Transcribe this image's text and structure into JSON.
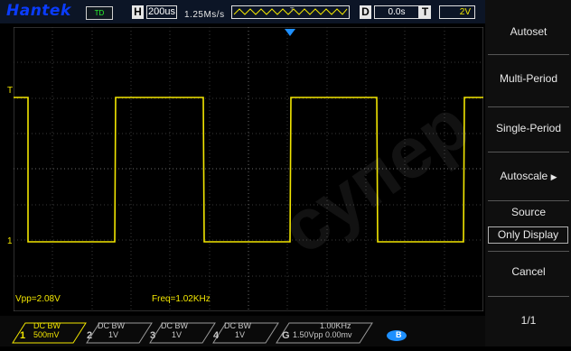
{
  "top": {
    "brand": "Hantek",
    "run": "TD",
    "h_label": "H",
    "h_value": "200us",
    "sample_rate": "1.25Ms/s",
    "d_label": "D",
    "d_value": "0.0s",
    "t_label": "T",
    "t_value": "2V"
  },
  "screen": {
    "ch1_marker": "1",
    "trig_marker": "T",
    "vpp": "Vpp=2.08V",
    "freq": "Freq=1.02KHz"
  },
  "menu": {
    "autoset": "Autoset",
    "multi": "Multi-Period",
    "single": "Single-Period",
    "autoscale": "Autoscale",
    "source_label": "Source",
    "source_value": "Only Display",
    "cancel": "Cancel",
    "page": "1/1"
  },
  "bottom": {
    "ch1": {
      "num": "1",
      "line1": "DC  BW",
      "line2": "500mV"
    },
    "ch2": {
      "num": "2",
      "line1": "DC  BW",
      "line2": "1V"
    },
    "ch3": {
      "num": "3",
      "line1": "DC  BW",
      "line2": "1V"
    },
    "ch4": {
      "num": "4",
      "line1": "DC  BW",
      "line2": "1V"
    },
    "trig": {
      "num": "G",
      "line1": "1.00KHz",
      "line2": "1.50Vpp  0.00mv"
    },
    "icon": "B"
  },
  "watermark": "супер"
}
